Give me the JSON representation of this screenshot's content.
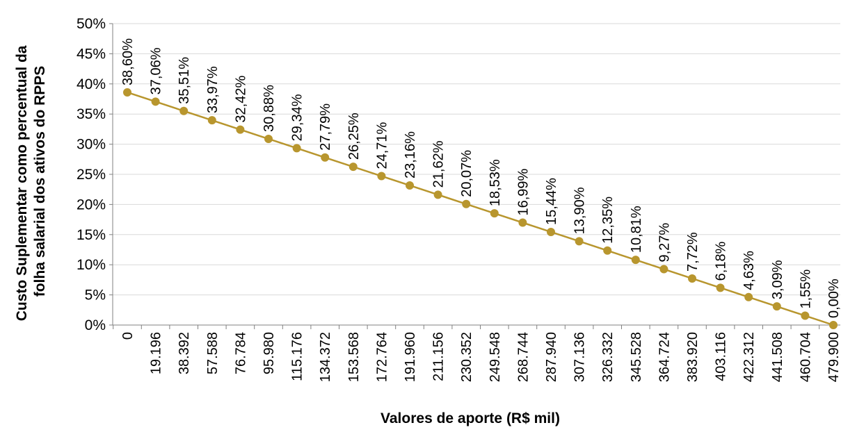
{
  "chart_data": {
    "type": "line",
    "xlabel": "Valores de aporte (R$ mil)",
    "ylabel_lines": [
      "Custo Suplementar como percentual da",
      "folha salarial dos ativos do RPPS"
    ],
    "ylim": [
      0,
      50
    ],
    "y_ticks": [
      "0%",
      "5%",
      "10%",
      "15%",
      "20%",
      "25%",
      "30%",
      "35%",
      "40%",
      "45%",
      "50%"
    ],
    "grid": true,
    "line_color": "#B8962E",
    "categories": [
      "0",
      "19.196",
      "38.392",
      "57.588",
      "76.784",
      "95.980",
      "115.176",
      "134.372",
      "153.568",
      "172.764",
      "191.960",
      "211.156",
      "230.352",
      "249.548",
      "268.744",
      "287.940",
      "307.136",
      "326.332",
      "345.528",
      "364.724",
      "383.920",
      "403.116",
      "422.312",
      "441.508",
      "460.704",
      "479.900"
    ],
    "values": [
      38.6,
      37.06,
      35.51,
      33.97,
      32.42,
      30.88,
      29.34,
      27.79,
      26.25,
      24.71,
      23.16,
      21.62,
      20.07,
      18.53,
      16.99,
      15.44,
      13.9,
      12.35,
      10.81,
      9.27,
      7.72,
      6.18,
      4.63,
      3.09,
      1.55,
      0.0
    ],
    "data_labels": [
      "38,60%",
      "37,06%",
      "35,51%",
      "33,97%",
      "32,42%",
      "30,88%",
      "29,34%",
      "27,79%",
      "26,25%",
      "24,71%",
      "23,16%",
      "21,62%",
      "20,07%",
      "18,53%",
      "16,99%",
      "15,44%",
      "13,90%",
      "12,35%",
      "10,81%",
      "9,27%",
      "7,72%",
      "6,18%",
      "4,63%",
      "3,09%",
      "1,55%",
      "0,00%"
    ]
  }
}
